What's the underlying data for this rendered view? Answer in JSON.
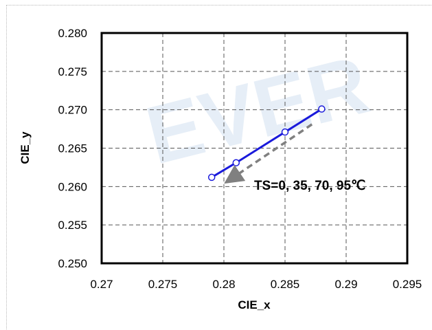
{
  "chart_data": {
    "type": "line",
    "title": "",
    "xlabel": "CIE_x",
    "ylabel": "CIE_y",
    "xlim": [
      0.27,
      0.295
    ],
    "ylim": [
      0.25,
      0.28
    ],
    "x_ticks": [
      "0.27",
      "0.275",
      "0.28",
      "0.285",
      "0.29",
      "0.295"
    ],
    "y_ticks": [
      "0.250",
      "0.255",
      "0.260",
      "0.265",
      "0.270",
      "0.275",
      "0.280"
    ],
    "grid": true,
    "series": [
      {
        "color": "#1a1adb",
        "marker": "circle",
        "x": [
          0.279,
          0.281,
          0.285,
          0.288
        ],
        "y": [
          0.2612,
          0.2631,
          0.2671,
          0.2701
        ]
      }
    ],
    "annotation": {
      "text": "TS=0, 35, 70, 95℃",
      "arrow_color": "#808080",
      "arrow_from": [
        0.2872,
        0.2681
      ],
      "arrow_to": [
        0.2805,
        0.2609
      ]
    },
    "watermark": "EVER"
  }
}
